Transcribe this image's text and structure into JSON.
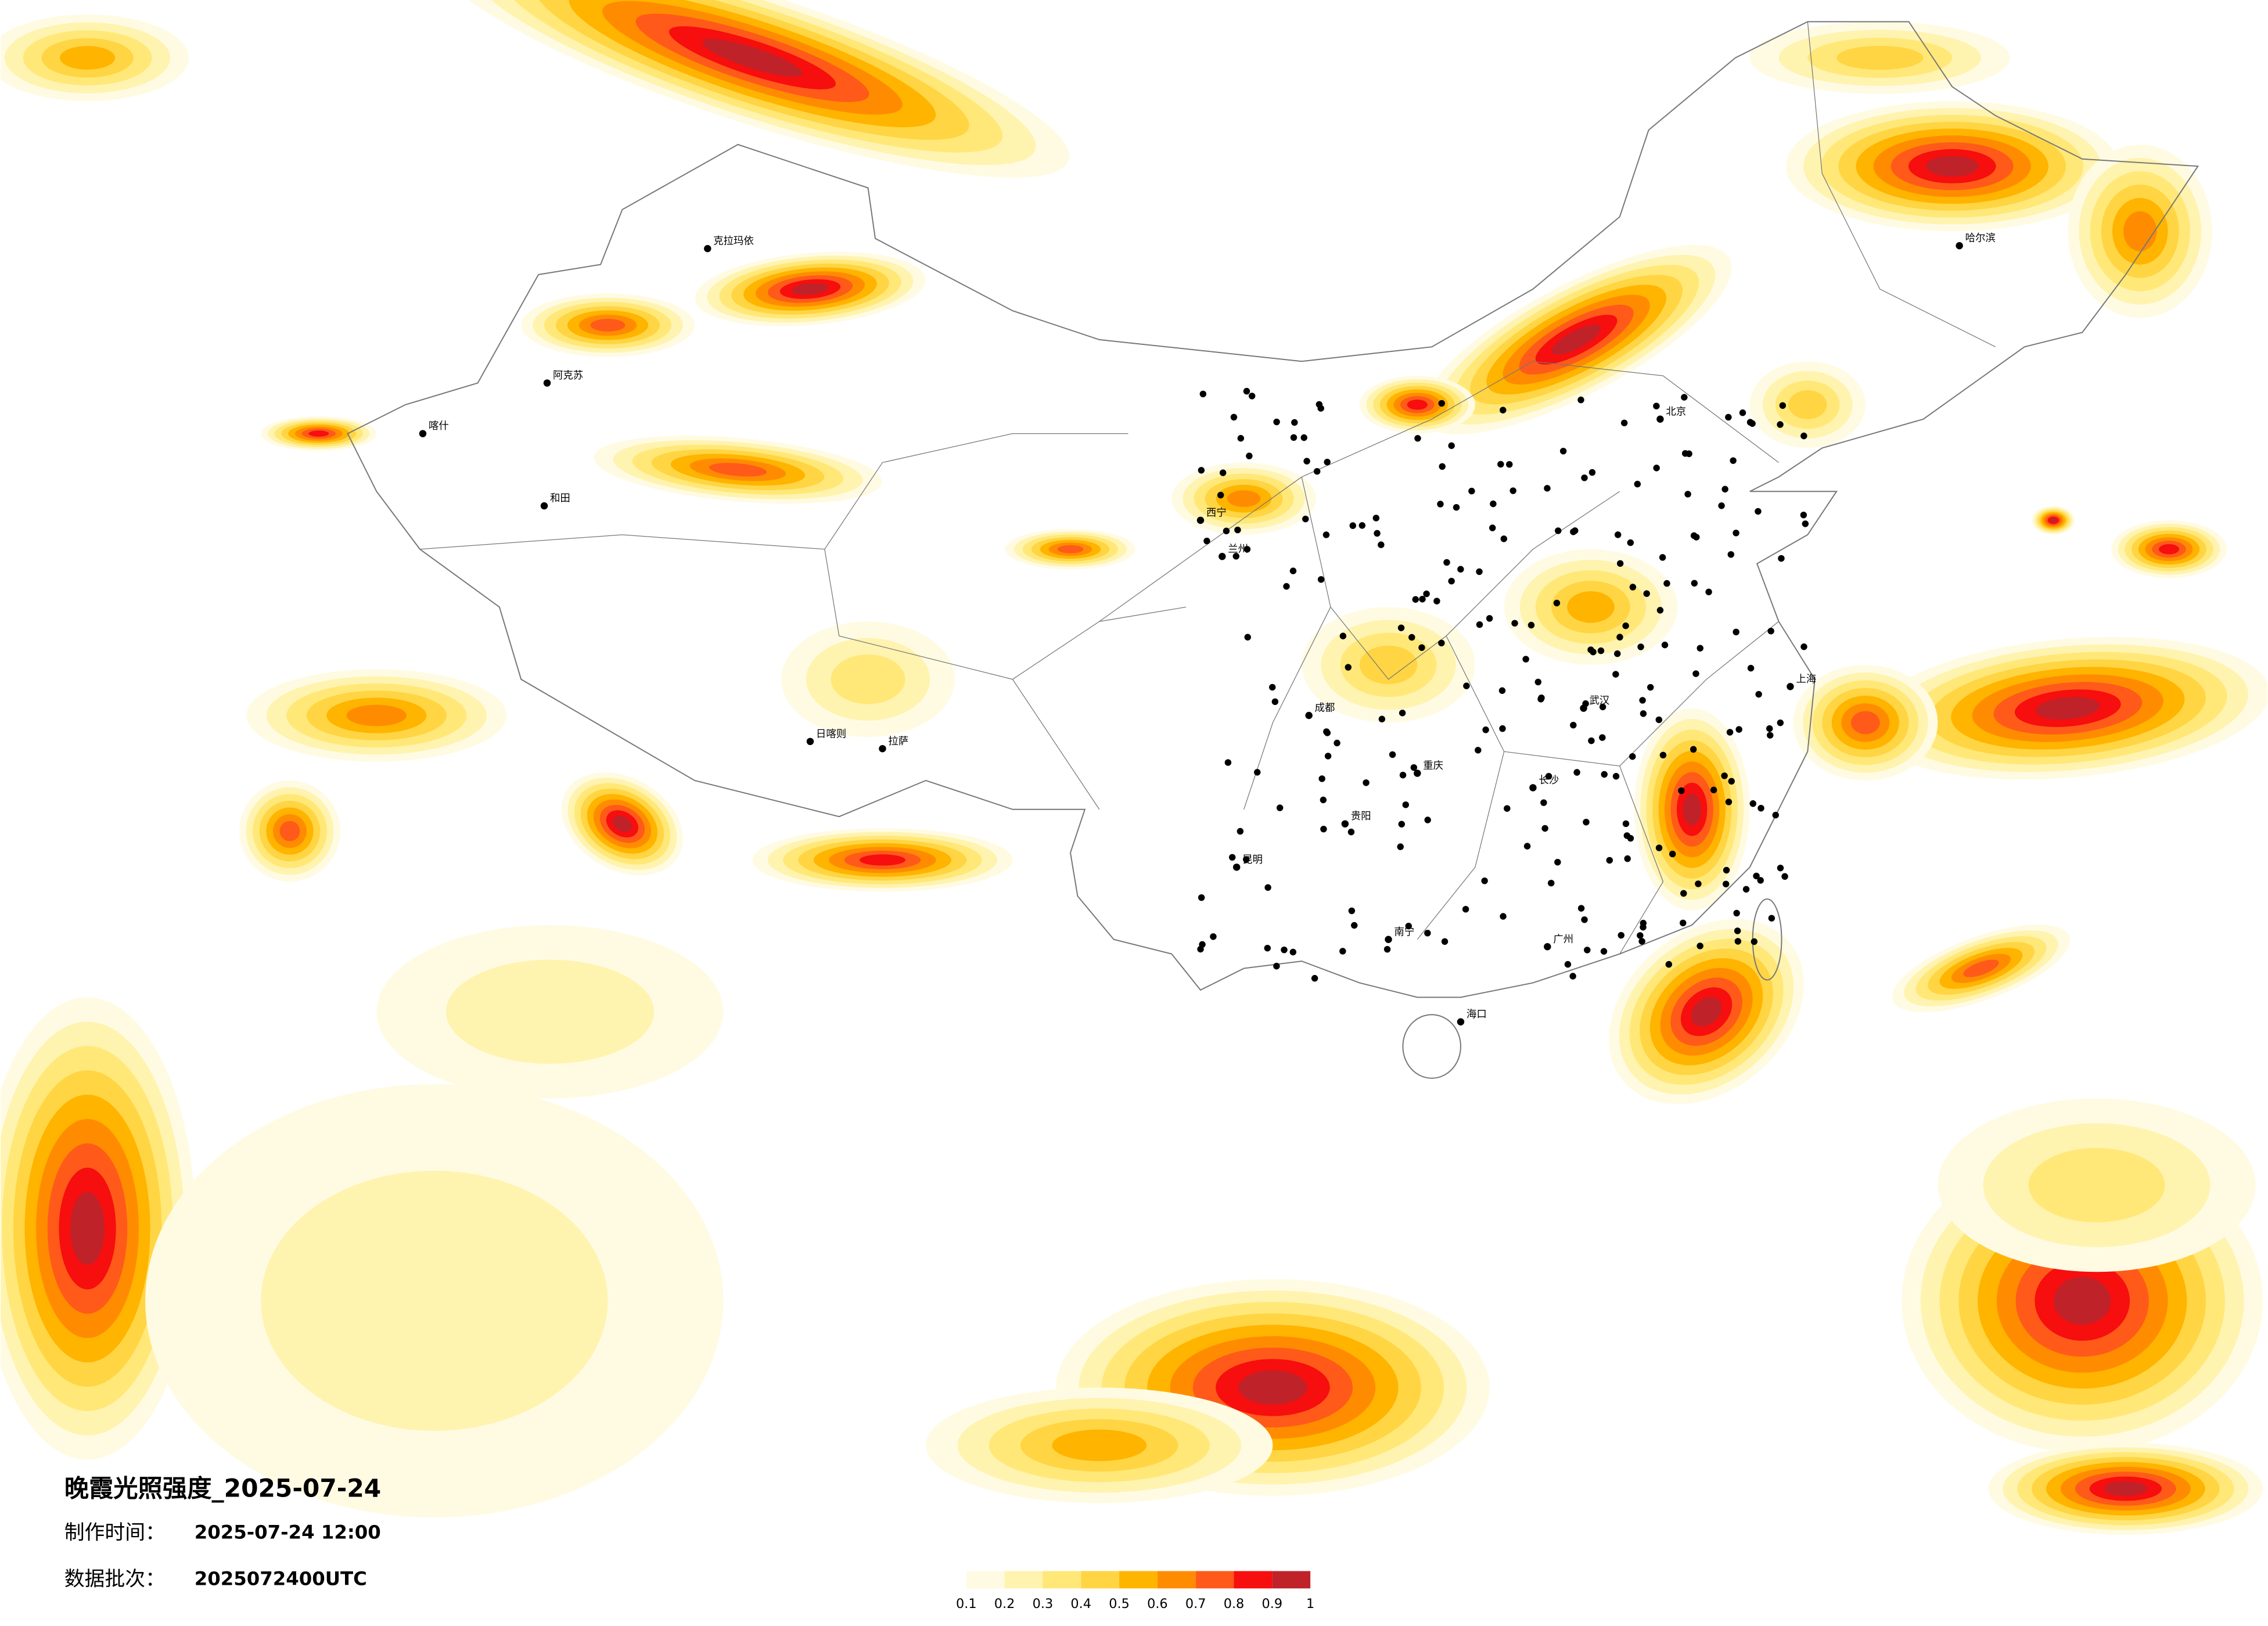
{
  "header": {
    "title": "晚霞光照强度_2025-07-24",
    "made_label": "制作时间：",
    "made_value": "2025-07-24 12:00",
    "batch_label": "数据批次：",
    "batch_value": "2025072400UTC"
  },
  "colorbar": {
    "ticks": [
      0.1,
      0.2,
      0.3,
      0.4,
      0.5,
      0.6,
      0.7,
      0.8,
      0.9,
      1
    ],
    "colors": [
      "#fffbe3",
      "#fff3b0",
      "#ffe878",
      "#ffd544",
      "#ffb400",
      "#ff8c00",
      "#ff5a1a",
      "#f70e0e",
      "#c0222a"
    ]
  },
  "cities": [
    "克拉玛依",
    "阿克苏",
    "和田",
    "喀什",
    "拉萨",
    "日喀则",
    "西宁",
    "兰州",
    "成都",
    "重庆",
    "昆明",
    "北京",
    "上海",
    "广州",
    "哈尔滨",
    "海口",
    "南宁",
    "长沙",
    "武汉",
    "贵阳"
  ]
}
